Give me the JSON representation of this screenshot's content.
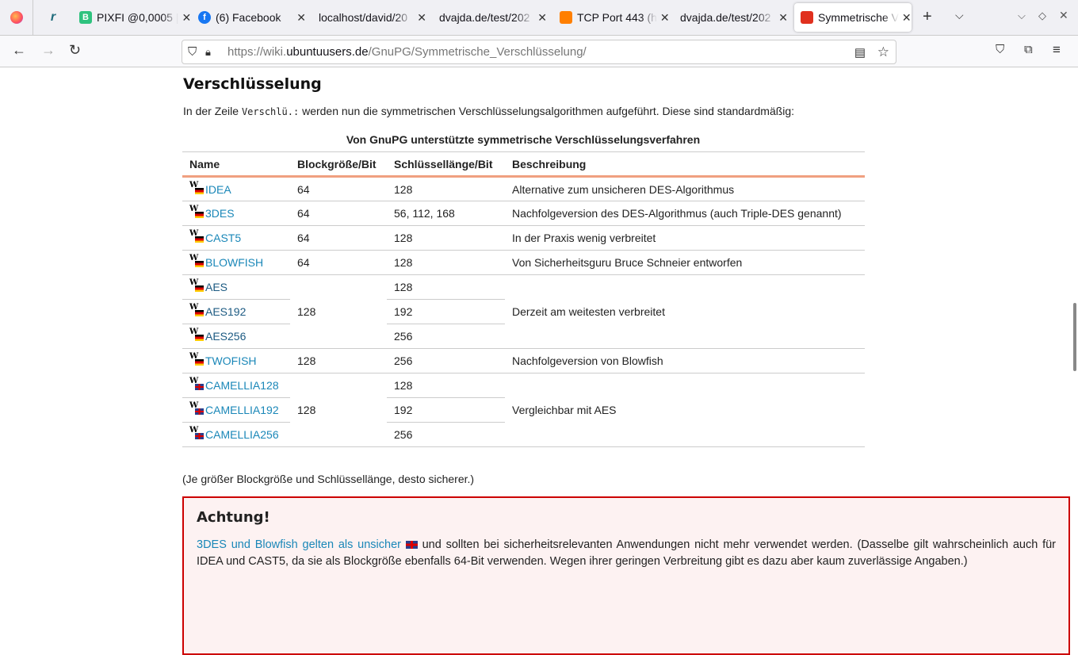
{
  "browser": {
    "tabs": [
      {
        "label": "PIXFI @0,0005 |",
        "icon": "pixfi-icon",
        "color": "#2ec27e"
      },
      {
        "label": "(6) Facebook",
        "icon": "facebook-icon",
        "color": "#1877f2"
      },
      {
        "label": "localhost/david/20",
        "icon": "",
        "color": ""
      },
      {
        "label": "dvajda.de/test/202",
        "icon": "",
        "color": ""
      },
      {
        "label": "TCP Port 443 (h",
        "icon": "orange-bars-icon",
        "color": "#ff7f00"
      },
      {
        "label": "dvajda.de/test/202",
        "icon": "",
        "color": ""
      },
      {
        "label": "Symmetrische V",
        "icon": "ubuntuusers-icon",
        "color": "#e0301e",
        "active": true
      }
    ],
    "url_prefix": "https://wiki.",
    "url_domain": "ubuntuusers.de",
    "url_path": "/GnuPG/Symmetrische_Verschlüsselung/"
  },
  "page": {
    "heading": "Verschlüsselung",
    "intro_before": "In der Zeile ",
    "intro_code": "Verschlü.:",
    "intro_after": " werden nun die symmetrischen Verschlüsselungsalgorithmen aufgeführt. Diese sind standardmäßig:",
    "caption": "Von GnuPG unterstützte symmetrische Verschlüsselungsverfahren",
    "headers": [
      "Name",
      "Blockgröße/Bit",
      "Schlüssellänge/Bit",
      "Beschreibung"
    ],
    "rows": [
      {
        "name": "IDEA",
        "block": "64",
        "key": "128",
        "desc": "Alternative zum unsicheren DES-Algorithmus"
      },
      {
        "name": "3DES",
        "block": "64",
        "key": "56, 112, 168",
        "desc": "Nachfolgeversion des DES-Algorithmus (auch Triple-DES genannt)"
      },
      {
        "name": "CAST5",
        "block": "64",
        "key": "128",
        "desc": "In der Praxis wenig verbreitet"
      },
      {
        "name": "BLOWFISH",
        "block": "64",
        "key": "128",
        "desc": "Von Sicherheitsguru Bruce Schneier entworfen"
      },
      {
        "name": "AES",
        "block": "128",
        "key": "128",
        "desc": "Derzeit am weitesten verbreitet"
      },
      {
        "name": "AES192",
        "key": "192"
      },
      {
        "name": "AES256",
        "key": "256"
      },
      {
        "name": "TWOFISH",
        "block": "128",
        "key": "256",
        "desc": "Nachfolgeversion von Blowfish"
      },
      {
        "name": "CAMELLIA128",
        "block": "128",
        "key": "128",
        "desc": "Vergleichbar mit AES"
      },
      {
        "name": "CAMELLIA192",
        "key": "192"
      },
      {
        "name": "CAMELLIA256",
        "key": "256"
      }
    ],
    "note": "(Je größer Blockgröße und Schlüssellänge, desto sicherer.)",
    "warning": {
      "title": "Achtung!",
      "link": "3DES und Blowfish gelten als unsicher",
      "text": " und sollten bei sicherheitsrelevanten Anwendungen nicht mehr verwendet werden. (Dasselbe gilt wahrscheinlich auch für IDEA und CAST5, da sie als Blockgröße ebenfalls 64-Bit verwenden. Wegen ihrer geringen Verbreitung gibt es dazu aber kaum zuverlässige Angaben.)"
    }
  }
}
